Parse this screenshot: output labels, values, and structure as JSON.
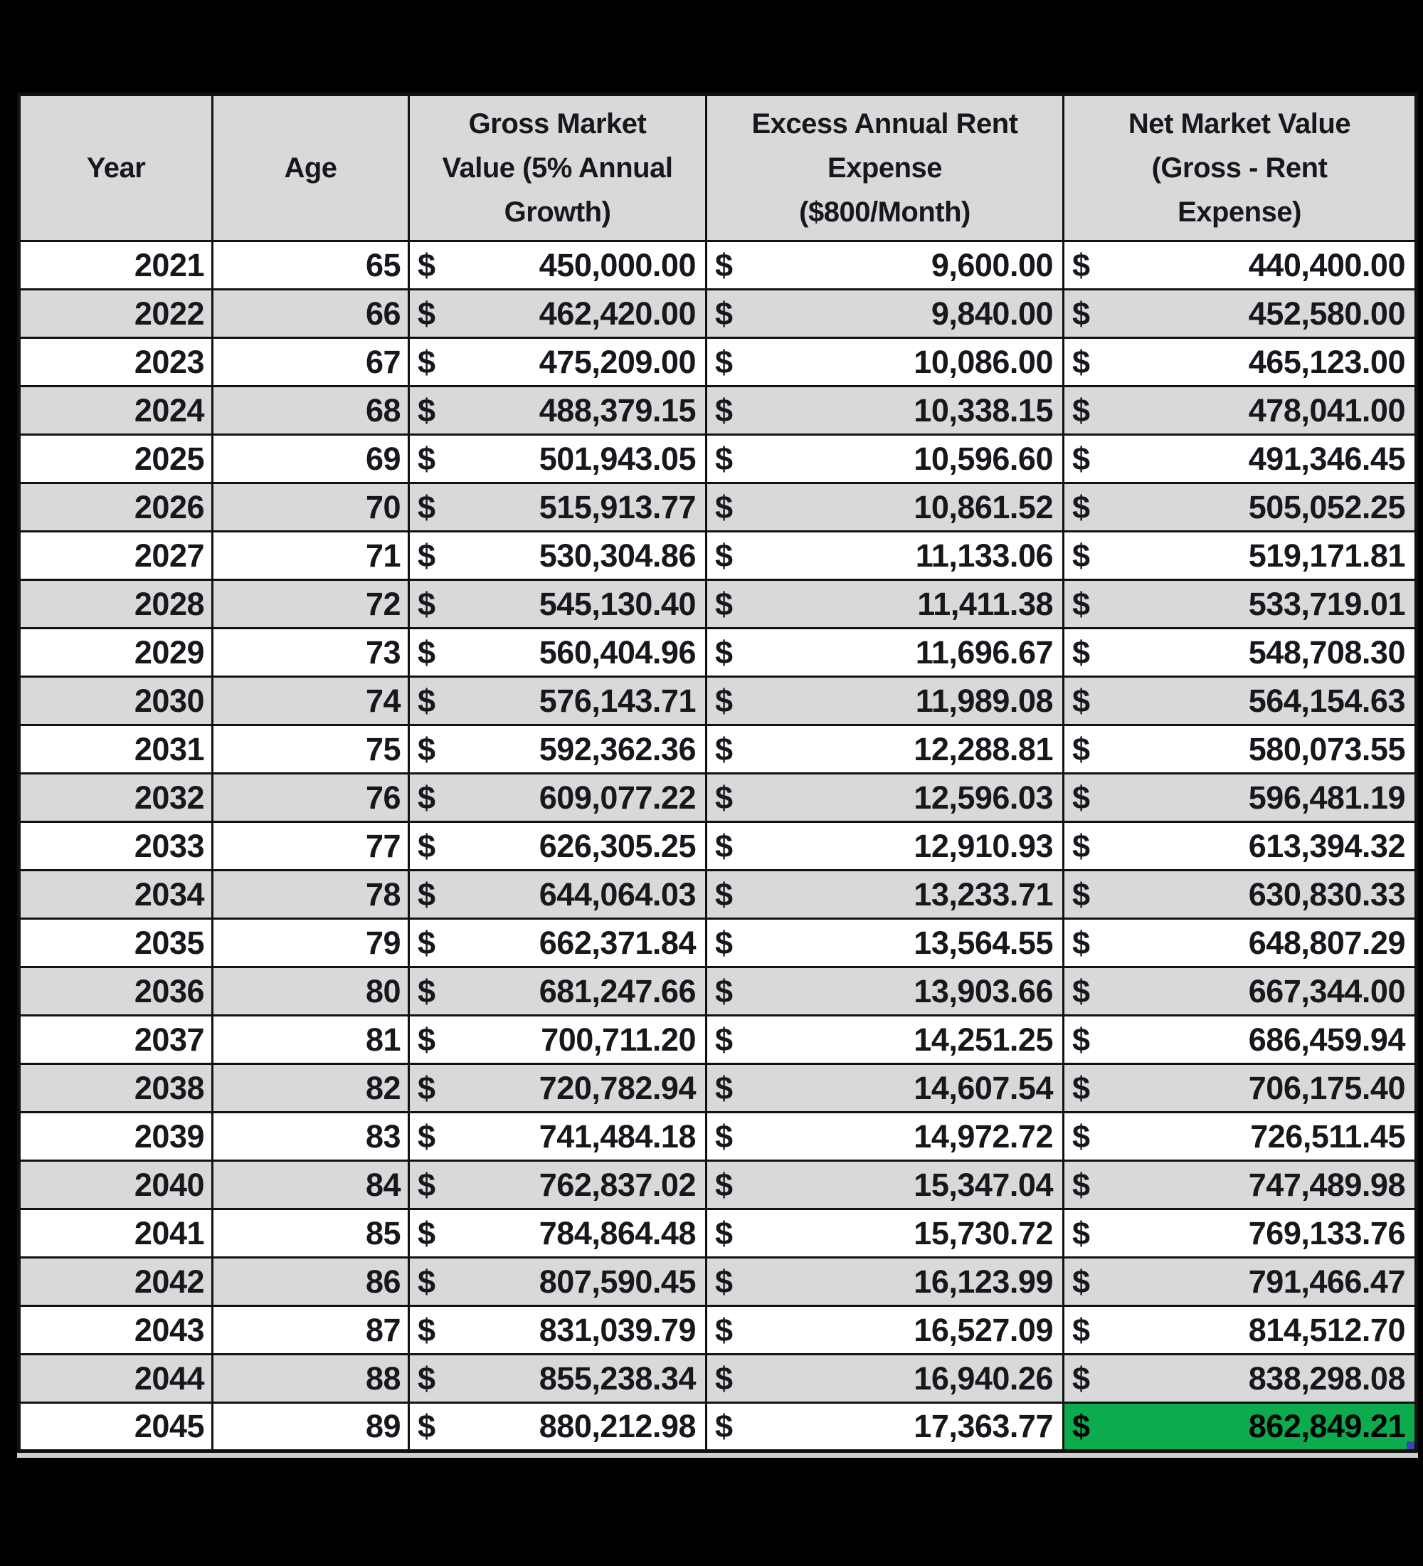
{
  "table": {
    "currency_symbol": "$",
    "columns": [
      {
        "key": "year",
        "label": "Year"
      },
      {
        "key": "age",
        "label": "Age"
      },
      {
        "key": "gross",
        "label": "Gross Market\nValue (5% Annual\nGrowth)"
      },
      {
        "key": "rent",
        "label": "Excess Annual Rent\nExpense\n($800/Month)"
      },
      {
        "key": "net",
        "label": "Net Market Value\n(Gross - Rent\nExpense)"
      }
    ],
    "rows": [
      {
        "year": "2021",
        "age": "65",
        "gross": "450,000.00",
        "rent": "9,600.00",
        "net": "440,400.00"
      },
      {
        "year": "2022",
        "age": "66",
        "gross": "462,420.00",
        "rent": "9,840.00",
        "net": "452,580.00"
      },
      {
        "year": "2023",
        "age": "67",
        "gross": "475,209.00",
        "rent": "10,086.00",
        "net": "465,123.00"
      },
      {
        "year": "2024",
        "age": "68",
        "gross": "488,379.15",
        "rent": "10,338.15",
        "net": "478,041.00"
      },
      {
        "year": "2025",
        "age": "69",
        "gross": "501,943.05",
        "rent": "10,596.60",
        "net": "491,346.45"
      },
      {
        "year": "2026",
        "age": "70",
        "gross": "515,913.77",
        "rent": "10,861.52",
        "net": "505,052.25"
      },
      {
        "year": "2027",
        "age": "71",
        "gross": "530,304.86",
        "rent": "11,133.06",
        "net": "519,171.81"
      },
      {
        "year": "2028",
        "age": "72",
        "gross": "545,130.40",
        "rent": "11,411.38",
        "net": "533,719.01"
      },
      {
        "year": "2029",
        "age": "73",
        "gross": "560,404.96",
        "rent": "11,696.67",
        "net": "548,708.30"
      },
      {
        "year": "2030",
        "age": "74",
        "gross": "576,143.71",
        "rent": "11,989.08",
        "net": "564,154.63"
      },
      {
        "year": "2031",
        "age": "75",
        "gross": "592,362.36",
        "rent": "12,288.81",
        "net": "580,073.55"
      },
      {
        "year": "2032",
        "age": "76",
        "gross": "609,077.22",
        "rent": "12,596.03",
        "net": "596,481.19"
      },
      {
        "year": "2033",
        "age": "77",
        "gross": "626,305.25",
        "rent": "12,910.93",
        "net": "613,394.32"
      },
      {
        "year": "2034",
        "age": "78",
        "gross": "644,064.03",
        "rent": "13,233.71",
        "net": "630,830.33"
      },
      {
        "year": "2035",
        "age": "79",
        "gross": "662,371.84",
        "rent": "13,564.55",
        "net": "648,807.29"
      },
      {
        "year": "2036",
        "age": "80",
        "gross": "681,247.66",
        "rent": "13,903.66",
        "net": "667,344.00"
      },
      {
        "year": "2037",
        "age": "81",
        "gross": "700,711.20",
        "rent": "14,251.25",
        "net": "686,459.94"
      },
      {
        "year": "2038",
        "age": "82",
        "gross": "720,782.94",
        "rent": "14,607.54",
        "net": "706,175.40"
      },
      {
        "year": "2039",
        "age": "83",
        "gross": "741,484.18",
        "rent": "14,972.72",
        "net": "726,511.45"
      },
      {
        "year": "2040",
        "age": "84",
        "gross": "762,837.02",
        "rent": "15,347.04",
        "net": "747,489.98"
      },
      {
        "year": "2041",
        "age": "85",
        "gross": "784,864.48",
        "rent": "15,730.72",
        "net": "769,133.76"
      },
      {
        "year": "2042",
        "age": "86",
        "gross": "807,590.45",
        "rent": "16,123.99",
        "net": "791,466.47"
      },
      {
        "year": "2043",
        "age": "87",
        "gross": "831,039.79",
        "rent": "16,527.09",
        "net": "814,512.70"
      },
      {
        "year": "2044",
        "age": "88",
        "gross": "855,238.34",
        "rent": "16,940.26",
        "net": "838,298.08"
      },
      {
        "year": "2045",
        "age": "89",
        "gross": "880,212.98",
        "rent": "17,363.77",
        "net": "862,849.21",
        "net_highlighted": true
      }
    ],
    "highlight": {
      "row_year": "2045",
      "column": "net",
      "fill": "#0cab4d",
      "handle_color": "#3947ae"
    }
  },
  "colors": {
    "page_background": "#000000",
    "row_white": "#ffffff",
    "row_alt_gray": "#d9d9d9",
    "header_gray": "#d9d9d9",
    "grid_border": "#111111",
    "text": "#17171e",
    "highlight_green": "#0cab4d",
    "fill_handle_blue": "#3947ae"
  }
}
